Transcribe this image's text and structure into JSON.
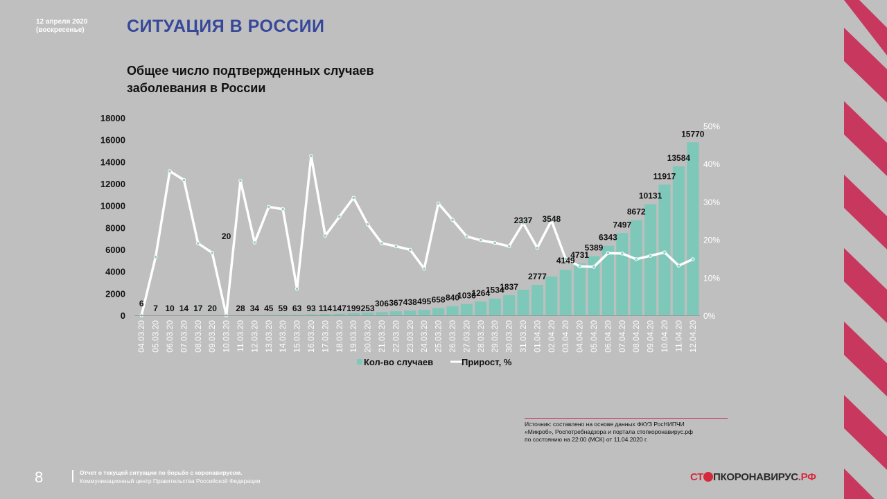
{
  "header": {
    "date_line1": "12 апреля 2020",
    "date_line2": "(воскресенье)",
    "title": "СИТУАЦИЯ В РОССИИ"
  },
  "chart_title_line1": "Общее число подтвержденных случаев",
  "chart_title_line2": "заболевания в России",
  "source": {
    "line1": "Источник: составлено на основе данных ФКУЗ РосНИПЧИ",
    "line2": "«Микроб», Роспотребнадзора и портала стопкоронавирус.рф",
    "line3": "по состоянию на 22:00 (МСК) от 11.04.2020 г."
  },
  "footer": {
    "page_number": "8",
    "line1": "Отчет о текущей ситуации по борьбе с коронавирусом.",
    "line2": "Коммуникационный центр Правительства Российской Федерации"
  },
  "logo": {
    "part1": "СТ",
    "part2": "ПКОРОНАВИРУС",
    "part3": ".РФ"
  },
  "colors": {
    "bar": "#7ec8b9",
    "line": "#ffffff",
    "title": "#36489a",
    "accent": "#c8375e",
    "background": "#bfbfbf"
  },
  "chart_data": {
    "type": "bar",
    "categories": [
      "04.03.20",
      "05.03.20",
      "06.03.20",
      "07.03.20",
      "08.03.20",
      "09.03.20",
      "10.03.20",
      "11.03.20",
      "12.03.20",
      "13.03.20",
      "14.03.20",
      "15.03.20",
      "16.03.20",
      "17.03.20",
      "18.03.20",
      "19.03.20",
      "20.03.20",
      "21.03.20",
      "22.03.20",
      "23.03.20",
      "24.03.20",
      "25.03.20",
      "26.03.20",
      "27.03.20",
      "28.03.20",
      "29.03.20",
      "30.03.20",
      "31.03.20",
      "01.04.20",
      "02.04.20",
      "03.04.20",
      "04.04.20",
      "05.04.20",
      "06.04.20",
      "07.04.20",
      "08.04.20",
      "09.04.20",
      "10.04.20",
      "11.04.20",
      "12.04.20"
    ],
    "series": [
      {
        "name": "Кол-во случаев",
        "type": "bar",
        "axis": "left",
        "values": [
          6,
          7,
          10,
          14,
          17,
          20,
          20,
          28,
          34,
          45,
          59,
          63,
          93,
          114,
          147,
          199,
          253,
          306,
          367,
          438,
          495,
          658,
          840,
          1036,
          1264,
          1534,
          1837,
          2337,
          2777,
          3548,
          4149,
          4731,
          5389,
          6343,
          7497,
          8672,
          10131,
          11917,
          13584,
          15770
        ]
      },
      {
        "name": "Прирост, %",
        "type": "line",
        "axis": "right",
        "values": [
          0,
          15.4,
          38,
          35.7,
          19,
          16.5,
          0,
          35.5,
          19.2,
          28.6,
          28,
          7,
          42,
          21,
          26,
          31,
          24,
          19,
          18.2,
          17.3,
          12.3,
          29.5,
          25.2,
          20.8,
          19.8,
          19.1,
          18.2,
          24.3,
          17.8,
          25,
          14.9,
          12.9,
          12.8,
          16.4,
          16.3,
          14.8,
          15.7,
          16.6,
          13.1,
          14.8
        ]
      }
    ],
    "y_left": {
      "min": 0,
      "max": 18000,
      "ticks": [
        "0",
        "2000",
        "4000",
        "6000",
        "8000",
        "10000",
        "12000",
        "14000",
        "16000",
        "18000"
      ]
    },
    "y_right": {
      "min": 0,
      "max": 55,
      "ticks": [
        "0%",
        "10%",
        "20%",
        "30%",
        "40%",
        "50%"
      ]
    },
    "legend_position": "bottom",
    "grid": false
  }
}
